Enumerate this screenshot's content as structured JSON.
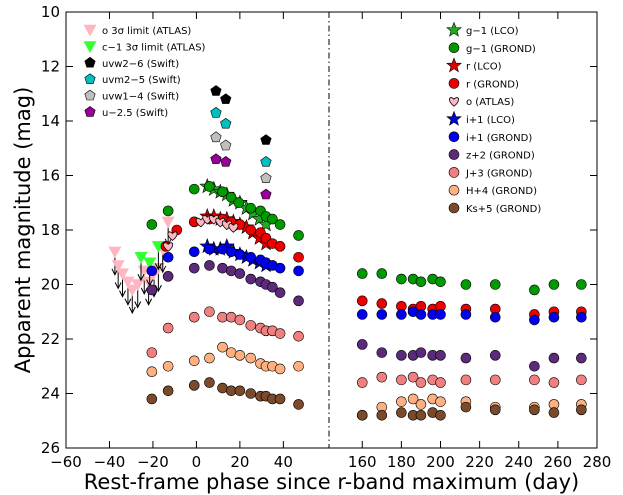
{
  "chart_data": {
    "type": "scatter",
    "xlabel": "Rest-frame phase since r-band maximum (day)",
    "ylabel": "Apparent magnitude (mag)",
    "ylim": [
      26,
      10
    ],
    "y_inverted": true,
    "grid": false,
    "break_marker": "dash-dot vertical line at axis break",
    "panels": [
      {
        "xlim": [
          -60,
          61
        ],
        "x_ticks": [
          -60,
          -40,
          -20,
          0,
          20,
          40
        ],
        "x_tick_labels": [
          "−60",
          "−40",
          "−20",
          "0",
          "20",
          "40"
        ]
      },
      {
        "xlim": [
          143,
          280
        ],
        "x_ticks": [
          160,
          180,
          200,
          220,
          240,
          260,
          280
        ],
        "x_tick_labels": [
          "160",
          "180",
          "200",
          "220",
          "240",
          "260",
          "280"
        ]
      }
    ],
    "y_ticks": [
      10,
      12,
      14,
      16,
      18,
      20,
      22,
      24,
      26
    ],
    "legend_left": {
      "placement": "upper-left",
      "entries": [
        {
          "key": "o_lim",
          "label": "o 3σ limit (ATLAS)"
        },
        {
          "key": "c_lim",
          "label": "c−1 3σ limit (ATLAS)"
        },
        {
          "key": "uvw2",
          "label": "uvw2−6 (Swift)"
        },
        {
          "key": "uvm2",
          "label": "uvm2−5 (Swift)"
        },
        {
          "key": "uvw1",
          "label": "uvw1−4 (Swift)"
        },
        {
          "key": "u",
          "label": "u−2.5 (Swift)"
        }
      ]
    },
    "legend_right": {
      "placement": "upper-right",
      "entries": [
        {
          "key": "g_lco",
          "label": "g−1 (LCO)"
        },
        {
          "key": "g_grond",
          "label": "g−1 (GROND)"
        },
        {
          "key": "r_lco",
          "label": "r (LCO)"
        },
        {
          "key": "r_grond",
          "label": "r (GROND)"
        },
        {
          "key": "o_atlas",
          "label": "o (ATLAS)"
        },
        {
          "key": "i_lco",
          "label": "i+1 (LCO)"
        },
        {
          "key": "i_grond",
          "label": "i+1 (GROND)"
        },
        {
          "key": "z_grond",
          "label": "z+2 (GROND)"
        },
        {
          "key": "J_grond",
          "label": "J+3 (GROND)"
        },
        {
          "key": "H_grond",
          "label": "H+4 (GROND)"
        },
        {
          "key": "K_grond",
          "label": "Ks+5 (GROND)"
        }
      ]
    },
    "series": [
      {
        "key": "o_lim",
        "marker": "tri-down",
        "color": "#ffb6c1",
        "upper_limit": true,
        "x": [
          -37.5,
          -36,
          -34,
          -31.5,
          -29.5,
          -27,
          -24,
          -22,
          -19.5,
          -17.5,
          -15.5,
          -13
        ],
        "y": [
          18.8,
          19.3,
          19.6,
          19.9,
          20.2,
          20.0,
          19.5,
          19.9,
          19.6,
          19.4,
          18.7,
          17.7
        ]
      },
      {
        "key": "c_lim",
        "marker": "tri-down",
        "color": "#33ff33",
        "upper_limit": true,
        "x": [
          -25.5,
          -21.5,
          -17.5
        ],
        "y": [
          19.0,
          19.2,
          18.6
        ]
      },
      {
        "key": "uvw2",
        "marker": "pentagon",
        "color": "#000000",
        "x": [
          9,
          13.5,
          32
        ],
        "y": [
          12.9,
          13.2,
          14.7
        ]
      },
      {
        "key": "uvm2",
        "marker": "pentagon",
        "color": "#00bfbf",
        "x": [
          9,
          13.5,
          32
        ],
        "y": [
          13.7,
          14.1,
          15.5
        ]
      },
      {
        "key": "uvw1",
        "marker": "pentagon",
        "color": "#bfbfbf",
        "x": [
          9,
          13.5,
          32
        ],
        "y": [
          14.6,
          14.9,
          16.1
        ]
      },
      {
        "key": "u",
        "marker": "pentagon",
        "color": "#990099",
        "x": [
          9,
          13.5,
          32
        ],
        "y": [
          15.4,
          15.5,
          16.7
        ]
      },
      {
        "key": "g_lco",
        "marker": "star",
        "color": "#22aa22",
        "x": [
          5,
          8,
          11,
          14,
          17,
          20,
          23,
          26,
          29,
          32
        ],
        "y": [
          16.4,
          16.5,
          16.6,
          16.7,
          16.9,
          17.0,
          17.2,
          17.4,
          17.6,
          17.8
        ]
      },
      {
        "key": "g_grond",
        "marker": "circle",
        "color": "#009900",
        "x": [
          -20.5,
          -13,
          -1,
          6,
          12,
          16,
          19.5,
          25,
          29.5,
          32,
          35,
          38.5,
          47,
          160,
          170,
          180,
          186,
          190,
          196,
          200,
          213,
          228,
          248,
          258,
          272
        ],
        "y": [
          17.8,
          17.3,
          16.5,
          16.4,
          16.6,
          16.8,
          17.0,
          17.2,
          17.3,
          17.5,
          17.6,
          17.8,
          18.2,
          19.6,
          19.6,
          19.8,
          19.8,
          19.9,
          19.8,
          19.9,
          20.0,
          20.0,
          20.2,
          20.0,
          20.0
        ]
      },
      {
        "key": "r_lco",
        "marker": "star",
        "color": "#dd0000",
        "x": [
          5,
          8,
          11,
          14,
          17,
          20,
          23,
          26,
          29,
          32
        ],
        "y": [
          17.5,
          17.5,
          17.6,
          17.6,
          17.7,
          17.8,
          17.9,
          18.1,
          18.3,
          18.5
        ]
      },
      {
        "key": "r_grond",
        "marker": "circle",
        "color": "#ee0000",
        "x": [
          -14,
          -9,
          -1,
          6,
          12,
          16,
          20,
          25,
          29.5,
          32,
          35,
          38.5,
          47,
          160,
          170,
          180,
          186,
          190,
          196,
          200,
          213,
          228,
          248,
          258,
          272
        ],
        "y": [
          18.6,
          18.0,
          17.7,
          17.6,
          17.6,
          17.7,
          17.8,
          18.0,
          18.1,
          18.3,
          18.5,
          18.6,
          19.0,
          20.6,
          20.7,
          20.8,
          20.9,
          20.8,
          20.9,
          20.8,
          20.9,
          20.9,
          21.1,
          21.0,
          21.0
        ]
      },
      {
        "key": "o_atlas",
        "marker": "heart",
        "color": "#ffb6c1",
        "x": [
          -13,
          -11,
          2,
          5,
          8,
          11,
          14,
          17
        ],
        "y": [
          18.6,
          18.2,
          17.7,
          17.6,
          17.6,
          17.7,
          17.8,
          17.9
        ]
      },
      {
        "key": "i_lco",
        "marker": "star",
        "color": "#0000dd",
        "x": [
          5,
          8,
          11,
          14,
          17,
          20,
          23,
          26,
          29,
          32
        ],
        "y": [
          18.6,
          18.7,
          18.7,
          18.6,
          18.8,
          18.9,
          19.0,
          19.1,
          19.2,
          19.3
        ]
      },
      {
        "key": "i_grond",
        "marker": "circle",
        "color": "#0000ee",
        "x": [
          -20.5,
          -13,
          -1,
          6,
          12,
          16,
          20,
          25,
          29.5,
          32,
          35,
          38.5,
          47,
          160,
          170,
          180,
          186,
          190,
          196,
          200,
          213,
          228,
          248,
          258,
          272
        ],
        "y": [
          19.5,
          19.0,
          18.8,
          18.7,
          18.7,
          18.8,
          18.9,
          19.0,
          19.1,
          19.2,
          19.3,
          19.4,
          19.5,
          21.1,
          21.1,
          21.1,
          21.0,
          21.1,
          21.1,
          21.1,
          21.1,
          21.2,
          21.3,
          21.2,
          21.2
        ]
      },
      {
        "key": "z_grond",
        "marker": "circle",
        "color": "#5c2a7a",
        "x": [
          -20.5,
          -13,
          -1,
          6,
          12,
          16,
          20,
          25,
          29.5,
          32,
          35,
          38.5,
          47,
          160,
          170,
          180,
          186,
          190,
          196,
          200,
          213,
          228,
          248,
          258,
          272
        ],
        "y": [
          20.2,
          19.7,
          19.4,
          19.3,
          19.4,
          19.5,
          19.6,
          19.8,
          19.9,
          20.0,
          20.1,
          20.3,
          20.6,
          22.2,
          22.5,
          22.6,
          22.6,
          22.5,
          22.6,
          22.6,
          22.7,
          22.6,
          23.0,
          22.7,
          22.7
        ]
      },
      {
        "key": "J_grond",
        "marker": "circle",
        "color": "#f08080",
        "x": [
          -20.5,
          -13,
          -1,
          6,
          12,
          16,
          20,
          25,
          29.5,
          32,
          35,
          38.5,
          47,
          160,
          170,
          180,
          186,
          190,
          196,
          200,
          213,
          228,
          248,
          258,
          272
        ],
        "y": [
          22.5,
          21.6,
          21.2,
          21.0,
          21.2,
          21.2,
          21.3,
          21.5,
          21.6,
          21.7,
          21.7,
          21.8,
          21.9,
          23.6,
          23.4,
          23.5,
          23.4,
          23.6,
          23.5,
          23.6,
          23.5,
          23.5,
          23.5,
          23.6,
          23.5
        ]
      },
      {
        "key": "H_grond",
        "marker": "circle",
        "color": "#ffb080",
        "x": [
          -20.5,
          -13,
          -1,
          6,
          12,
          16,
          20,
          25,
          29.5,
          32,
          35,
          38.5,
          47,
          160,
          170,
          180,
          186,
          190,
          196,
          200,
          213,
          228,
          248,
          258,
          272
        ],
        "y": [
          23.2,
          23.0,
          22.8,
          22.7,
          22.3,
          22.5,
          22.6,
          22.7,
          22.9,
          23.0,
          23.0,
          23.1,
          23.0,
          24.8,
          24.5,
          24.3,
          24.2,
          24.4,
          24.2,
          24.3,
          24.3,
          24.5,
          24.5,
          24.4,
          24.4
        ]
      },
      {
        "key": "K_grond",
        "marker": "circle",
        "color": "#7a4a2a",
        "x": [
          -20.5,
          -13,
          -1,
          6,
          12,
          16,
          20,
          25,
          29.5,
          32,
          35,
          38.5,
          47,
          160,
          170,
          180,
          186,
          190,
          196,
          200,
          213,
          228,
          248,
          258,
          272
        ],
        "y": [
          24.2,
          23.9,
          23.7,
          23.6,
          23.8,
          23.9,
          23.9,
          24.0,
          24.1,
          24.1,
          24.2,
          24.2,
          24.4,
          24.8,
          24.8,
          24.7,
          24.8,
          24.8,
          24.7,
          24.8,
          24.5,
          24.6,
          24.6,
          24.7,
          24.6
        ]
      }
    ]
  }
}
